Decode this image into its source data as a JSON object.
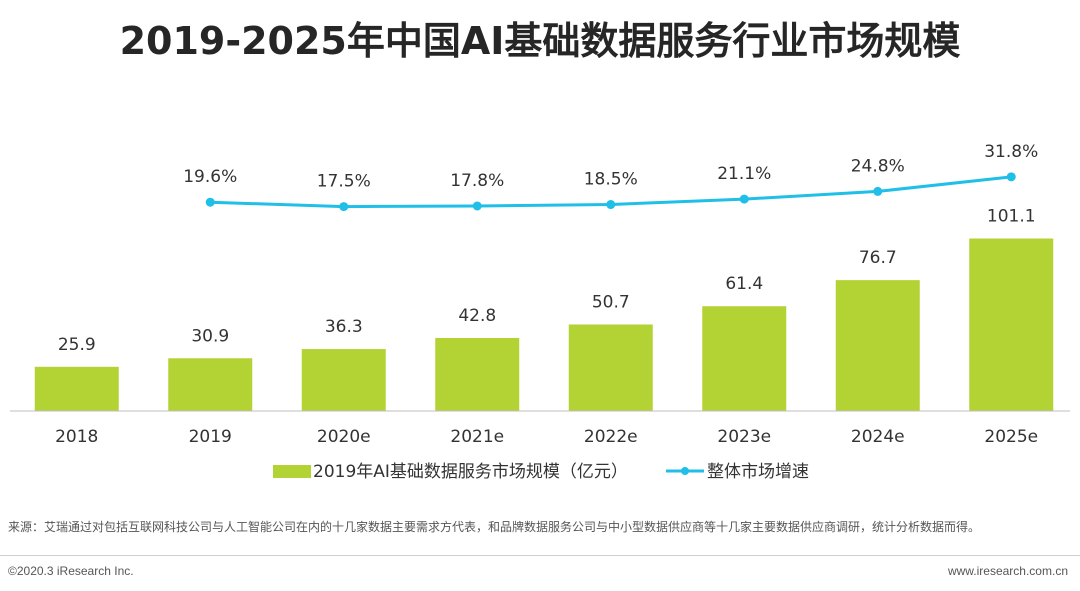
{
  "chart_data": {
    "type": "bar+line",
    "title": "2019-2025年中国AI基础数据服务行业市场规模",
    "categories": [
      "2018",
      "2019",
      "2020e",
      "2021e",
      "2022e",
      "2023e",
      "2024e",
      "2025e"
    ],
    "bar_series": {
      "name": "2019年AI基础数据服务市场规模（亿元）",
      "values": [
        25.9,
        30.9,
        36.3,
        42.8,
        50.7,
        61.4,
        76.7,
        101.1
      ],
      "labels": [
        "25.9",
        "30.9",
        "36.3",
        "42.8",
        "50.7",
        "61.4",
        "76.7",
        "101.1"
      ],
      "color": "#b3d233"
    },
    "line_series": {
      "name": "整体市场增速",
      "values": [
        null,
        19.6,
        17.5,
        17.8,
        18.5,
        21.1,
        24.8,
        31.8
      ],
      "labels": [
        "",
        "19.6%",
        "17.5%",
        "17.8%",
        "18.5%",
        "21.1%",
        "24.8%",
        "31.8%"
      ],
      "color": "#1fbfe8"
    },
    "legend_position": "bottom"
  },
  "footer": {
    "source": "来源：艾瑞通过对包括互联网科技公司与人工智能公司在内的十几家数据主要需求方代表，和品牌数据服务公司与中小型数据供应商等十几家主要数据供应商调研，统计分析数据而得。",
    "copyright": "©2020.3 iResearch Inc.",
    "website": "www.iresearch.com.cn"
  }
}
